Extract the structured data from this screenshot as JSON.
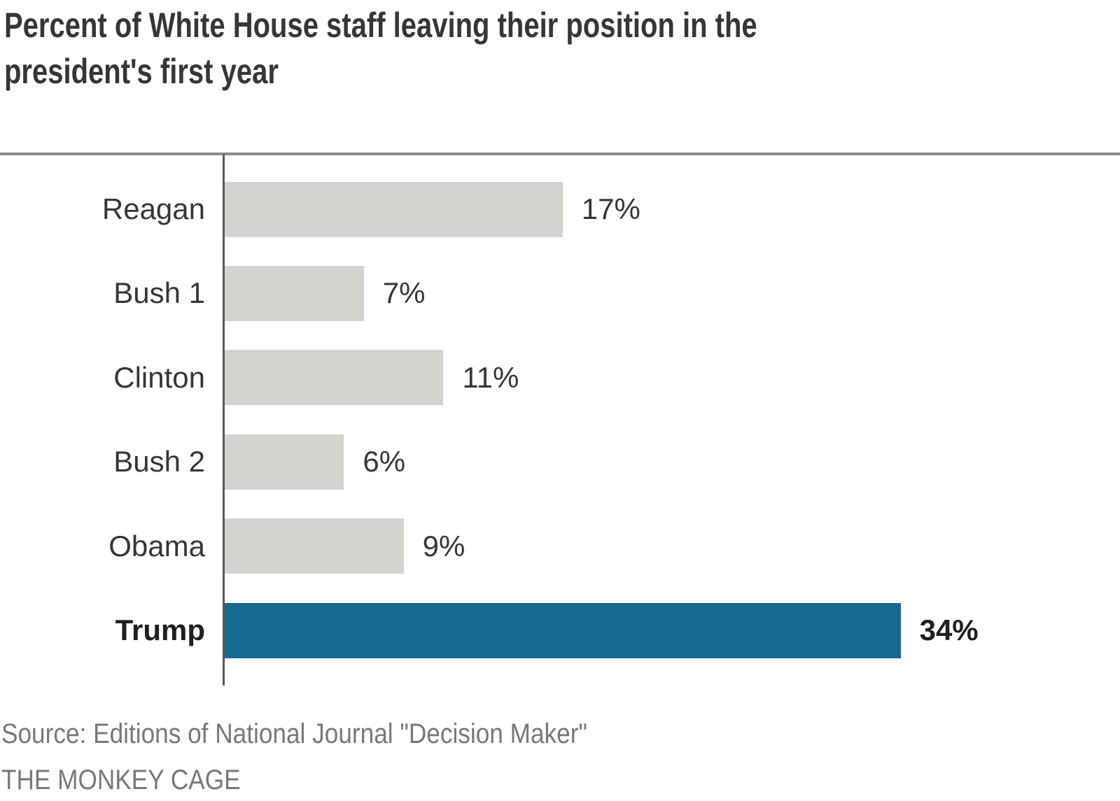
{
  "header": {
    "title": "Percent of White House staff leaving their position in the president's first year",
    "title_lines": [
      "Percent of White House staff leaving their position in the",
      "president's first year"
    ]
  },
  "footer": {
    "source": "Source: Editions of National Journal \"Decision Maker\"",
    "credit": "THE MONKEY CAGE"
  },
  "colors": {
    "bar_default": "#d3d3d0",
    "bar_highlight": "#17698f",
    "title_text": "#363636",
    "label_text": "#363636",
    "footer_text": "#787878",
    "axis_line": "#5a5a5a",
    "top_rule": "#8a8a8a",
    "background": "#ffffff"
  },
  "chart_data": {
    "type": "bar",
    "orientation": "horizontal",
    "title": "Percent of White House staff leaving their position in the president's first year",
    "categories": [
      "Reagan",
      "Bush 1",
      "Clinton",
      "Bush 2",
      "Obama",
      "Trump"
    ],
    "values": [
      17,
      7,
      11,
      6,
      9,
      34
    ],
    "value_labels": [
      "17%",
      "7%",
      "11%",
      "6%",
      "9%",
      "34%"
    ],
    "highlight_category": "Trump",
    "highlight_index": 5,
    "xlabel": "",
    "ylabel": "",
    "xlim": [
      0,
      34
    ],
    "grid": false,
    "legend": false,
    "value_label_position": "end-of-bar"
  }
}
